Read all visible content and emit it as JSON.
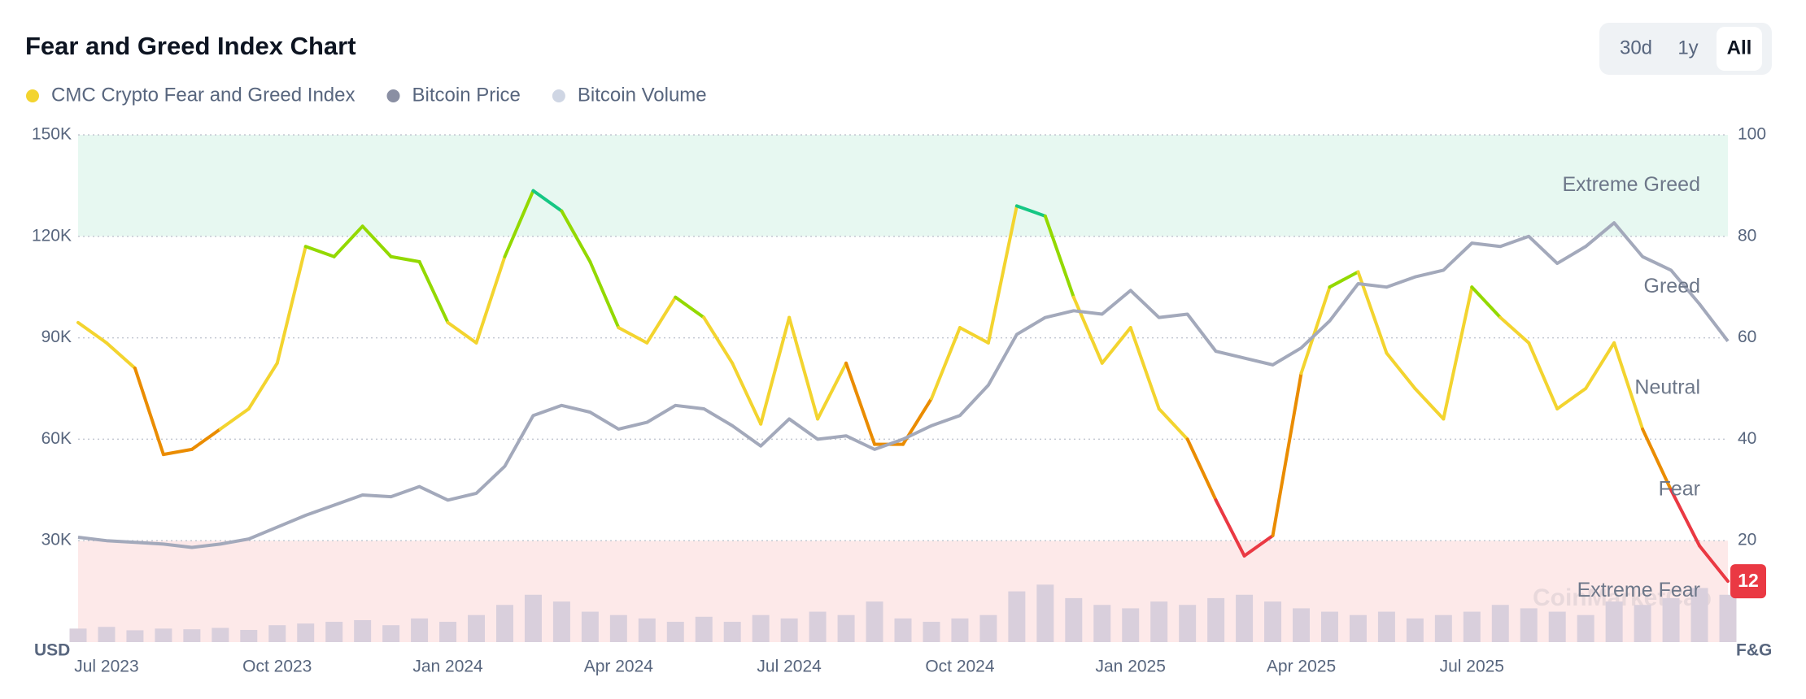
{
  "chart_data": {
    "type": "line",
    "title": "Fear and Greed Index Chart",
    "range_buttons": [
      "30d",
      "1y",
      "All"
    ],
    "active_range": "All",
    "y_label": "USD",
    "y2_label": "F&G",
    "watermark": "CoinMarketCap",
    "grid": true,
    "ylim": [
      0,
      150000
    ],
    "yticks": [
      {
        "value": 30000,
        "label": "30K"
      },
      {
        "value": 60000,
        "label": "60K"
      },
      {
        "value": 90000,
        "label": "90K"
      },
      {
        "value": 120000,
        "label": "120K"
      },
      {
        "value": 150000,
        "label": "150K"
      }
    ],
    "y2lim": [
      0,
      100
    ],
    "y2ticks": [
      20,
      40,
      60,
      80,
      100
    ],
    "zones": [
      {
        "label": "Extreme Greed",
        "from": 80,
        "to": 100,
        "line_color": "#16c784",
        "fill": "#e7f8f1"
      },
      {
        "label": "Greed",
        "from": 60,
        "to": 80,
        "line_color": "#93d900"
      },
      {
        "label": "Neutral",
        "from": 40,
        "to": 60,
        "line_color": "#f3d42f"
      },
      {
        "label": "Fear",
        "from": 20,
        "to": 40,
        "line_color": "#ea8c00"
      },
      {
        "label": "Extreme Fear",
        "from": 0,
        "to": 20,
        "line_color": "#ea3943",
        "fill": "#fde9e9"
      }
    ],
    "categories": [
      null,
      "Jul 2023",
      null,
      null,
      null,
      null,
      null,
      "Oct 2023",
      null,
      null,
      null,
      null,
      null,
      "Jan 2024",
      null,
      null,
      null,
      null,
      null,
      "Apr 2024",
      null,
      null,
      null,
      null,
      null,
      "Jul 2024",
      null,
      null,
      null,
      null,
      null,
      "Oct 2024",
      null,
      null,
      null,
      null,
      null,
      "Jan 2025",
      null,
      null,
      null,
      null,
      null,
      "Apr 2025",
      null,
      null,
      null,
      null,
      null,
      "Jul 2025",
      null,
      null,
      null,
      null,
      null,
      null,
      null,
      null,
      null
    ],
    "series": [
      {
        "name": "CMC Crypto Fear and Greed Index",
        "color": "#f3d42f",
        "axis": "y2",
        "values": [
          63,
          59,
          54,
          37,
          38,
          42,
          46,
          55,
          78,
          76,
          82,
          76,
          75,
          63,
          59,
          76,
          89,
          85,
          75,
          62,
          59,
          68,
          64,
          55,
          43,
          64,
          44,
          55,
          39,
          39,
          48,
          62,
          59,
          86,
          84,
          68,
          55,
          62,
          46,
          40,
          28,
          17,
          21,
          53,
          70,
          73,
          57,
          50,
          44,
          70,
          64,
          59,
          46,
          50,
          59,
          42,
          30,
          19,
          12
        ]
      },
      {
        "name": "Bitcoin Price",
        "color": "#8a8fa3",
        "line_color": "#a3a9bb",
        "values": [
          31000,
          30000,
          29500,
          29000,
          28000,
          29000,
          30500,
          34000,
          37500,
          40500,
          43500,
          43000,
          46000,
          42000,
          44000,
          52000,
          67000,
          70000,
          68000,
          63000,
          65000,
          70000,
          69000,
          64000,
          58000,
          66000,
          60000,
          61000,
          57000,
          60000,
          64000,
          67000,
          76000,
          91000,
          96000,
          98000,
          97000,
          104000,
          96000,
          97000,
          86000,
          84000,
          82000,
          87000,
          95000,
          106000,
          105000,
          108000,
          110000,
          118000,
          117000,
          120000,
          112000,
          117000,
          124000,
          114000,
          110000,
          100000,
          89000
        ]
      },
      {
        "name": "Bitcoin Volume",
        "color": "#cfd6e4",
        "bar_color": "#d9cfdc",
        "type": "bar",
        "values": [
          4000,
          4500,
          3500,
          4000,
          3800,
          4200,
          3600,
          5000,
          5500,
          6000,
          6500,
          5000,
          7000,
          6000,
          8000,
          11000,
          14000,
          12000,
          9000,
          8000,
          7000,
          6000,
          7500,
          6000,
          8000,
          7000,
          9000,
          8000,
          12000,
          7000,
          6000,
          7000,
          8000,
          15000,
          17000,
          13000,
          11000,
          10000,
          12000,
          11000,
          13000,
          14000,
          12000,
          10000,
          9000,
          8000,
          9000,
          7000,
          8000,
          9000,
          11000,
          10000,
          9000,
          8000,
          12000,
          11000,
          13000,
          16000,
          14000
        ]
      }
    ]
  }
}
